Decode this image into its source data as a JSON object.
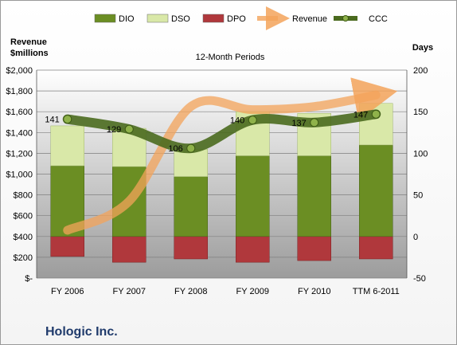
{
  "chart_data": {
    "type": "bar",
    "title": "12-Month Periods",
    "company": "Hologic Inc.",
    "left_axis_title_line1": "Revenue",
    "left_axis_title_line2": "$millions",
    "right_axis_title": "Days",
    "categories": [
      "FY 2006",
      "FY 2007",
      "FY 2008",
      "FY 2009",
      "FY 2010",
      "TTM 6-2011"
    ],
    "left_axis": {
      "ylim": [
        0,
        2000
      ],
      "ticks": [
        "$-",
        "$200",
        "$400",
        "$600",
        "$800",
        "$1,000",
        "$1,200",
        "$1,400",
        "$1,600",
        "$1,800",
        "$2,000"
      ]
    },
    "right_axis": {
      "ylim": [
        -50,
        200
      ],
      "ticks": [
        "-50",
        "0",
        "50",
        "100",
        "150",
        "200"
      ]
    },
    "series": [
      {
        "name": "DIO",
        "type": "stacked-bar-days",
        "values": [
          85,
          84,
          72,
          97,
          97,
          110
        ],
        "color": "#6b8e23"
      },
      {
        "name": "DSO",
        "type": "stacked-bar-days",
        "values": [
          48,
          46,
          33,
          53,
          51,
          50
        ],
        "color": "#d9e8a8"
      },
      {
        "name": "DPO",
        "type": "negative-bar-days",
        "values": [
          -24,
          -31,
          -27,
          -31,
          -29,
          -27
        ],
        "color": "#b0383c"
      },
      {
        "name": "Revenue",
        "type": "line-millions",
        "values": [
          460,
          740,
          1650,
          1620,
          1650,
          1760
        ],
        "color": "#f3a35a"
      },
      {
        "name": "CCC",
        "type": "line-days",
        "values": [
          141,
          129,
          106,
          140,
          137,
          147
        ],
        "labels": [
          "141",
          "129",
          "106",
          "140",
          "137",
          "147"
        ],
        "color": "#4a6a1e"
      }
    ],
    "legend_position": "top",
    "grid": true
  }
}
